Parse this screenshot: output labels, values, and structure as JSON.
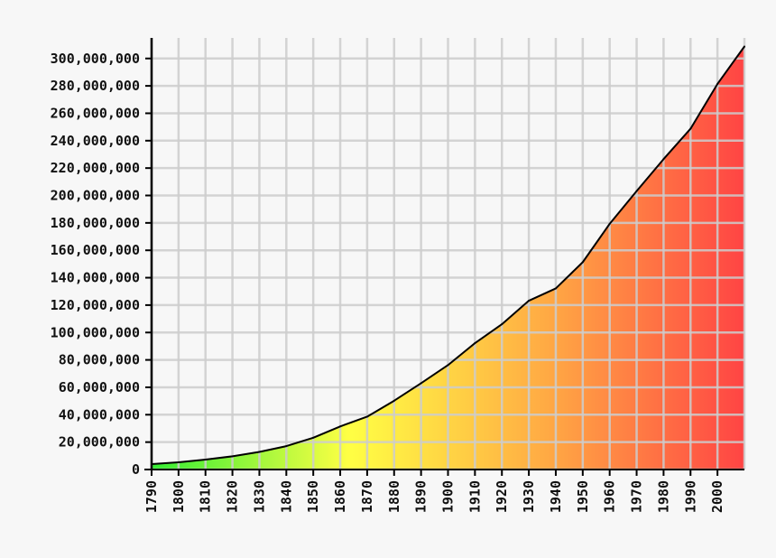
{
  "chart_data": {
    "type": "area",
    "title": "",
    "xlabel": "",
    "ylabel": "",
    "x": [
      1790,
      1800,
      1810,
      1820,
      1830,
      1840,
      1850,
      1860,
      1870,
      1880,
      1890,
      1900,
      1910,
      1920,
      1930,
      1940,
      1950,
      1960,
      1970,
      1980,
      1990,
      2000,
      2010
    ],
    "values": [
      3929214,
      5308483,
      7239881,
      9638453,
      12866020,
      17069453,
      23191876,
      31443321,
      38558371,
      50189209,
      62979766,
      76212168,
      92228496,
      106021537,
      123202624,
      132164569,
      151325798,
      179323175,
      203211926,
      226545805,
      248709873,
      281421906,
      308745538
    ],
    "xlim": [
      1790,
      2010
    ],
    "ylim": [
      0,
      315000000
    ],
    "x_ticks": [
      1790,
      1800,
      1810,
      1820,
      1830,
      1840,
      1850,
      1860,
      1870,
      1880,
      1890,
      1900,
      1910,
      1920,
      1930,
      1940,
      1950,
      1960,
      1970,
      1980,
      1990,
      2000
    ],
    "x_tick_labels": [
      "1790",
      "1800",
      "1810",
      "1820",
      "1830",
      "1840",
      "1850",
      "1860",
      "1870",
      "1880",
      "1890",
      "1900",
      "1910",
      "1920",
      "1930",
      "1940",
      "1950",
      "1960",
      "1970",
      "1980",
      "1990",
      "2000"
    ],
    "y_ticks": [
      0,
      20000000,
      40000000,
      60000000,
      80000000,
      100000000,
      120000000,
      140000000,
      160000000,
      180000000,
      200000000,
      220000000,
      240000000,
      260000000,
      280000000,
      300000000
    ],
    "y_tick_labels": [
      "0",
      "20,000,000",
      "40,000,000",
      "60,000,000",
      "80,000,000",
      "100,000,000",
      "120,000,000",
      "140,000,000",
      "160,000,000",
      "180,000,000",
      "200,000,000",
      "220,000,000",
      "240,000,000",
      "260,000,000",
      "280,000,000",
      "300,000,000"
    ],
    "grid": true,
    "fill_gradient": [
      "#33ee33",
      "#ffff44",
      "#ffaa44",
      "#ff4444"
    ],
    "line_color": "#000000",
    "grid_color": "#cccccc",
    "background": "#f7f7f7"
  }
}
